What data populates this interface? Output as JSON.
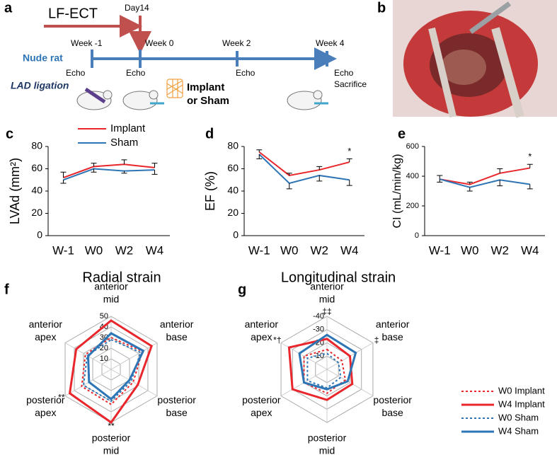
{
  "timeline": {
    "panel_label": "a",
    "treatment": "LF-ECT",
    "day": "Day14",
    "subject": "Nude rat",
    "weeks": [
      "Week -1",
      "Week 0",
      "Week 2",
      "Week 4"
    ],
    "echo": [
      "Echo",
      "Echo",
      "Echo",
      "Echo"
    ],
    "sacrifice": "Sacrifice",
    "ligation": "LAD ligation",
    "implant": [
      "Implant",
      "or Sham"
    ]
  },
  "photo": {
    "panel_label": "b"
  },
  "chart_data": [
    {
      "type": "line",
      "panel_label": "c",
      "ylabel": "LVAd (mm²)",
      "categories": [
        "W-1",
        "W0",
        "W2",
        "W4"
      ],
      "ylim": [
        0,
        80
      ],
      "yticks": [
        0,
        20,
        40,
        60,
        80
      ],
      "legend": "top-left",
      "series": [
        {
          "name": "Implant",
          "color": "#e8262b",
          "values": [
            52,
            62,
            64,
            61
          ],
          "errors": [
            5,
            3,
            4,
            4
          ],
          "error_direction": "up"
        },
        {
          "name": "Sham",
          "color": "#2e75b6",
          "values": [
            50,
            60,
            58,
            59
          ],
          "errors": [
            3,
            3,
            2,
            4
          ],
          "error_direction": "down"
        }
      ]
    },
    {
      "type": "line",
      "panel_label": "d",
      "ylabel": "EF (%)",
      "categories": [
        "W-1",
        "W0",
        "W2",
        "W4"
      ],
      "ylim": [
        0,
        80
      ],
      "yticks": [
        0,
        20,
        40,
        60,
        80
      ],
      "annotation": "*",
      "series": [
        {
          "color": "#e8262b",
          "values": [
            75,
            54,
            59,
            66
          ],
          "errors": [
            2,
            2,
            3,
            3
          ],
          "error_direction": "up"
        },
        {
          "color": "#2e75b6",
          "values": [
            73,
            47,
            54,
            50
          ],
          "errors": [
            4,
            5,
            5,
            5
          ],
          "error_direction": "down"
        }
      ]
    },
    {
      "type": "line",
      "panel_label": "e",
      "ylabel": "CI (mL/min/kg)",
      "categories": [
        "W-1",
        "W0",
        "W2",
        "W4"
      ],
      "ylim": [
        0,
        600
      ],
      "yticks": [
        0,
        200,
        400,
        600
      ],
      "annotation": "*",
      "series": [
        {
          "color": "#e8262b",
          "values": [
            380,
            345,
            420,
            455
          ],
          "errors": [
            25,
            15,
            30,
            25
          ],
          "error_direction": "up"
        },
        {
          "color": "#2e75b6",
          "values": [
            380,
            325,
            375,
            345
          ],
          "errors": [
            20,
            25,
            40,
            30
          ],
          "error_direction": "down"
        }
      ]
    },
    {
      "type": "radar",
      "panel_label": "f",
      "title": "Radial strain",
      "axes": [
        [
          "anterior",
          "mid"
        ],
        [
          "anterior",
          "base"
        ],
        [
          "posterior",
          "base"
        ],
        [
          "posterior",
          "mid"
        ],
        [
          "posterior",
          "apex"
        ],
        [
          "anterior",
          "apex"
        ]
      ],
      "rlim": [
        0,
        50
      ],
      "rticks": [
        10,
        20,
        30,
        40,
        50
      ],
      "annotations": [
        {
          "text": "**",
          "axis": 4
        },
        {
          "text": "**",
          "axis": 3
        }
      ],
      "series": [
        {
          "color": "#e8262b",
          "dashed": true,
          "values": [
            30,
            34,
            24,
            33,
            32,
            28
          ]
        },
        {
          "color": "#e8262b",
          "dashed": false,
          "values": [
            46,
            44,
            29,
            50,
            45,
            38
          ]
        },
        {
          "color": "#2e75b6",
          "dashed": true,
          "values": [
            28,
            32,
            22,
            30,
            30,
            26
          ]
        },
        {
          "color": "#2e75b6",
          "dashed": false,
          "values": [
            34,
            35,
            20,
            28,
            24,
            25
          ]
        }
      ]
    },
    {
      "type": "radar",
      "panel_label": "g",
      "title": "Longitudinal strain",
      "axes": [
        [
          "anterior",
          "mid"
        ],
        [
          "anterior",
          "base"
        ],
        [
          "posterior",
          "base"
        ],
        [
          "posterior",
          "mid"
        ],
        [
          "posterior",
          "apex"
        ],
        [
          "anterior",
          "apex"
        ]
      ],
      "rlim": [
        0,
        -40
      ],
      "rticks": [
        -10,
        -20,
        -30,
        -40
      ],
      "legend": "bottom-right",
      "annotations": [
        {
          "text": "‡‡",
          "axis": 0
        },
        {
          "text": "‡",
          "axis": 1
        },
        {
          "text": "*†",
          "axis": 5
        }
      ],
      "series": [
        {
          "name": "W0 Implant",
          "color": "#e8262b",
          "dashed": true,
          "values": [
            -15,
            -13,
            -16,
            -18,
            -20,
            -20
          ]
        },
        {
          "name": "W4 Implant",
          "color": "#e8262b",
          "dashed": false,
          "values": [
            -23,
            -20,
            -22,
            -23,
            -30,
            -33
          ]
        },
        {
          "name": "W0 Sham",
          "color": "#2e75b6",
          "dashed": true,
          "values": [
            -12,
            -10,
            -12,
            -14,
            -17,
            -17
          ]
        },
        {
          "name": "W4 Sham",
          "color": "#2e75b6",
          "dashed": false,
          "values": [
            -26,
            -25,
            -18,
            -15,
            -20,
            -24
          ]
        }
      ]
    }
  ]
}
